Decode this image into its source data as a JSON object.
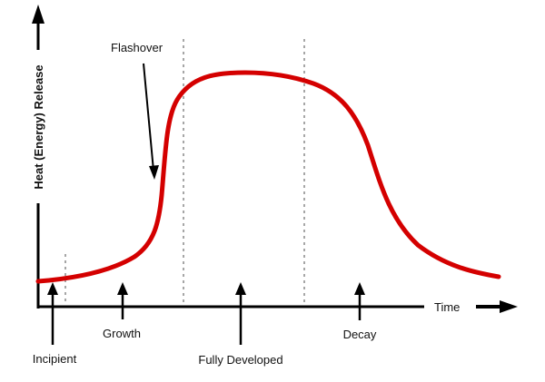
{
  "diagram": {
    "y_axis_label": "Heat (Energy) Release",
    "x_axis_label": "Time",
    "annotation": "Flashover",
    "stages": [
      {
        "label": "Incipient"
      },
      {
        "label": "Growth"
      },
      {
        "label": "Fully Developed"
      },
      {
        "label": "Decay"
      }
    ],
    "curve_color": "#d40000"
  }
}
